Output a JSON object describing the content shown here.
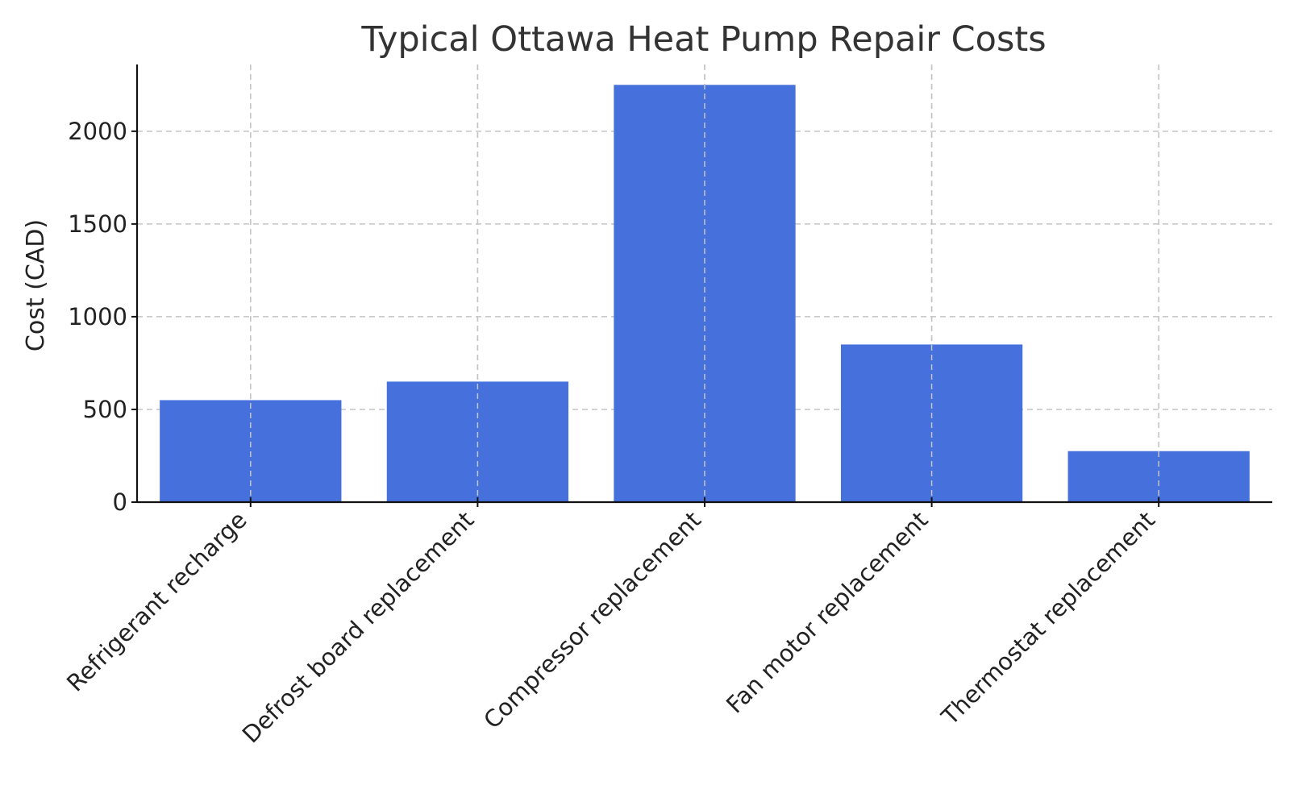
{
  "chart_data": {
    "type": "bar",
    "title": "Typical Ottawa Heat Pump Repair Costs",
    "xlabel": "",
    "ylabel": "Cost (CAD)",
    "categories": [
      "Refrigerant recharge",
      "Defrost board replacement",
      "Compressor replacement",
      "Fan motor replacement",
      "Thermostat replacement"
    ],
    "values": [
      550,
      650,
      2250,
      850,
      275
    ],
    "ylim": [
      0,
      2360
    ],
    "yticks": [
      0,
      500,
      1000,
      1500,
      2000
    ],
    "grid": true,
    "bar_color": "#4670DB"
  }
}
